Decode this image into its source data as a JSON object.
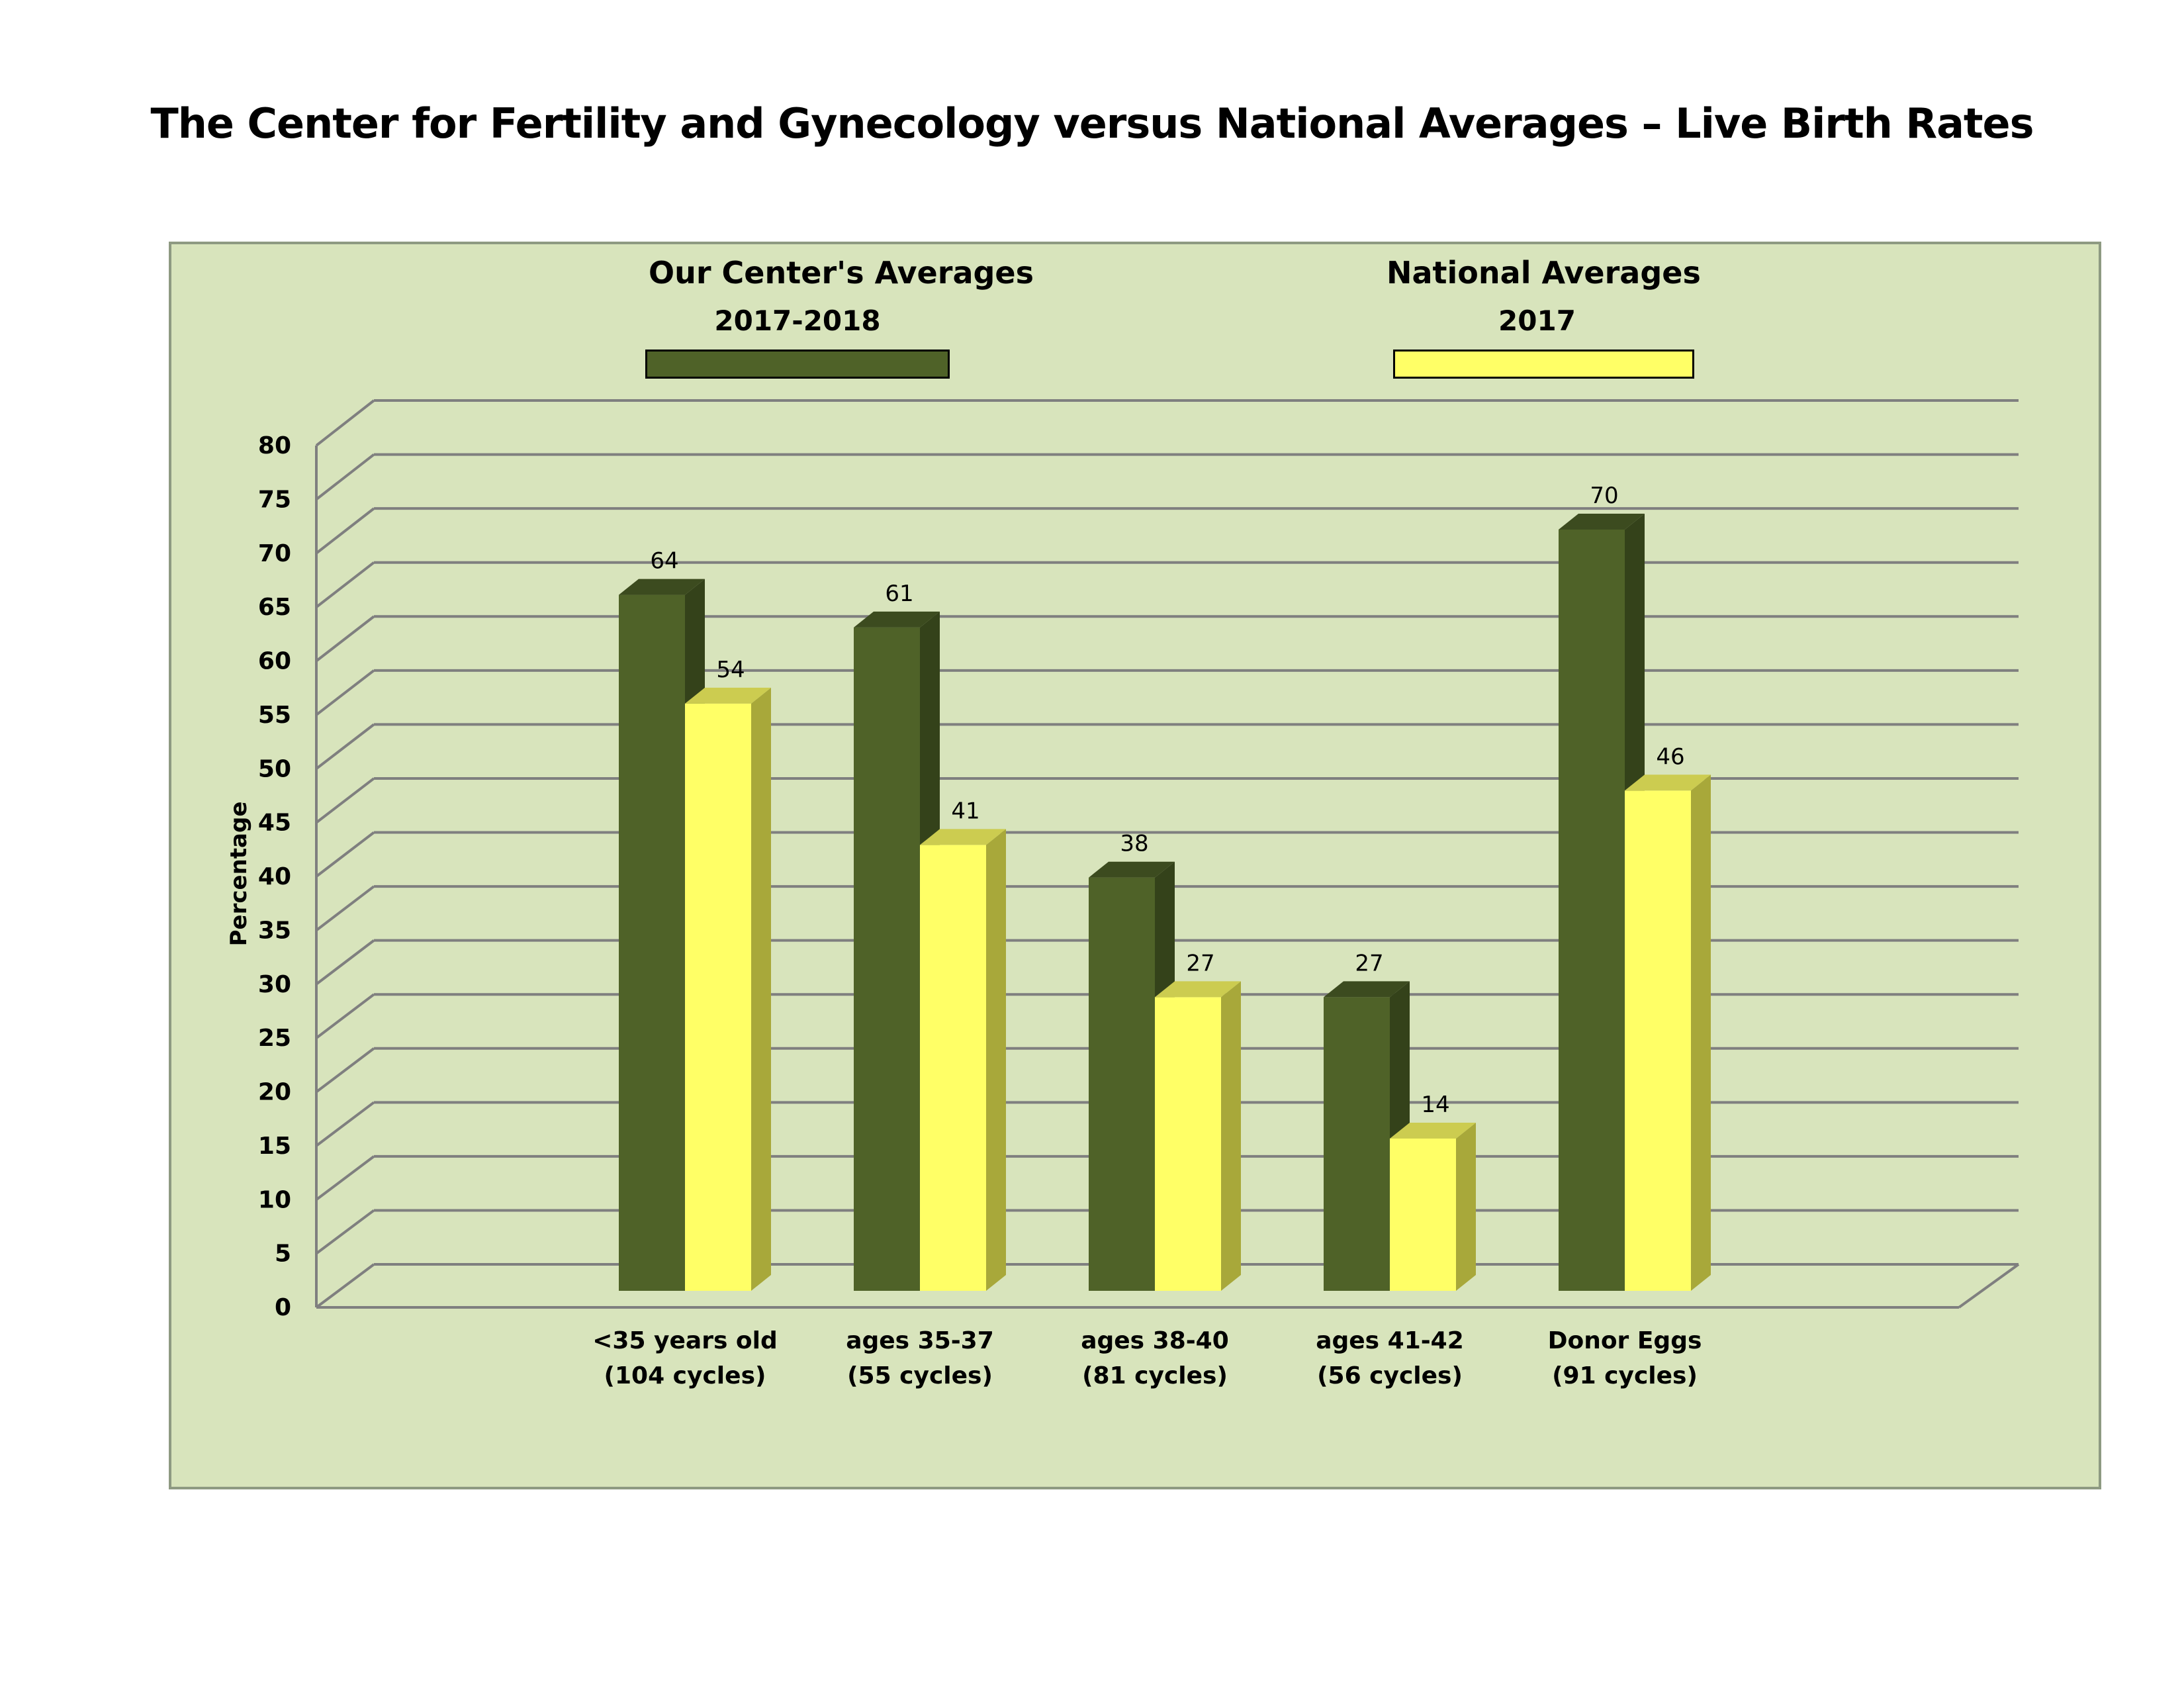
{
  "chart_data": {
    "type": "bar",
    "title": "The Center for Fertility and Gynecology versus National Averages – Live Birth Rates",
    "ylabel": "Percentage",
    "xlabel": "",
    "ylim": [
      0,
      80
    ],
    "ytick_step": 5,
    "grid": true,
    "legend_position": "top",
    "categories": [
      {
        "line1": "<35 years old",
        "line2": "(104 cycles)"
      },
      {
        "line1": "ages 35-37",
        "line2": "(55 cycles)"
      },
      {
        "line1": "ages 38-40",
        "line2": "(81 cycles)"
      },
      {
        "line1": "ages 41-42",
        "line2": "(56 cycles)"
      },
      {
        "line1": "Donor Eggs",
        "line2": "(91 cycles)"
      }
    ],
    "series": [
      {
        "name": "Our Center's Averages",
        "period": "2017-2018",
        "color": "#4f6228",
        "side_color": "#34421a",
        "top_color": "#3c4b1f",
        "values": [
          64,
          61,
          38,
          27,
          70
        ],
        "labels": [
          "64",
          "61",
          "38",
          "27",
          "70"
        ]
      },
      {
        "name": "National  Averages",
        "period": "2017",
        "color": "#ffff66",
        "side_color": "#a8a83a",
        "top_color": "#cccc50",
        "values": [
          54,
          41,
          27,
          14,
          46
        ],
        "labels": [
          "54",
          "41",
          "27",
          "14",
          "46"
        ]
      }
    ]
  },
  "colors": {
    "background": "#d8e4bc",
    "gridline": "#7f7f7f"
  }
}
